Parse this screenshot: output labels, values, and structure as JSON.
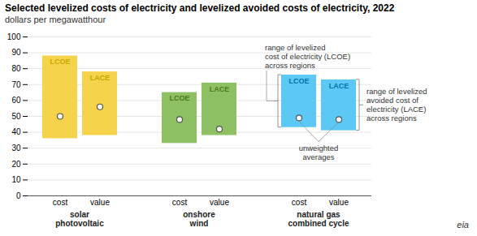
{
  "chart_data": {
    "type": "bar",
    "title": "Selected levelized costs of electricity and levelized avoided costs of electricity, 2022",
    "subtitle": "dollars per megawatthour",
    "ylim": [
      0,
      100
    ],
    "yticks": [
      0,
      10,
      20,
      30,
      40,
      50,
      60,
      70,
      80,
      90,
      100
    ],
    "grid": true,
    "marker": "circle",
    "groups": [
      {
        "name": "solar\nphotovoltaic",
        "color": "#F5D34A",
        "label_color": "#C8A800",
        "categories": [
          "cost",
          "value"
        ],
        "bar_labels": [
          "LCOE",
          "LACE"
        ],
        "bottoms": [
          36,
          38
        ],
        "tops": [
          88,
          78
        ],
        "averages": [
          50,
          56
        ]
      },
      {
        "name": "onshore\nwind",
        "color": "#8DC063",
        "label_color": "#4E7A1A",
        "categories": [
          "cost",
          "value"
        ],
        "bar_labels": [
          "LCOE",
          "LACE"
        ],
        "bottoms": [
          33,
          38
        ],
        "tops": [
          65,
          71
        ],
        "averages": [
          48,
          42
        ]
      },
      {
        "name": "natural gas\ncombined cycle",
        "color": "#5BC8F5",
        "label_color": "#0073A8",
        "categories": [
          "cost",
          "value"
        ],
        "bar_labels": [
          "LCOE",
          "LACE"
        ],
        "bottoms": [
          43,
          41
        ],
        "tops": [
          76,
          73
        ],
        "averages": [
          49,
          48
        ]
      }
    ],
    "annotations": [
      "range of levelized\ncost of electricity (LCOE)\nacross regions",
      "range of levelized\navoided cost of\nelectricity (LACE)\nacross regions",
      "unweighted\naverages",
      "eia"
    ]
  }
}
